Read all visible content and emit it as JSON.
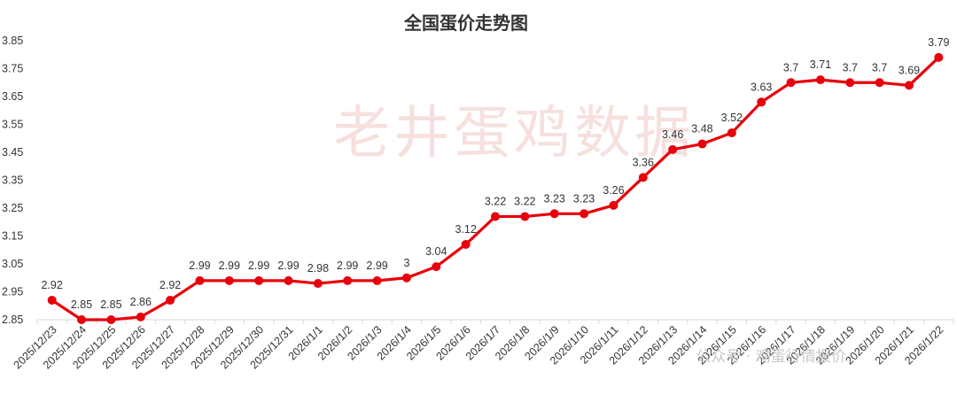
{
  "watermark": "老井蛋鸡数据",
  "footer_watermark": "公众号 · 鸡蛋行情报价",
  "colors": {
    "line": "#e8000b",
    "axis": "#d9d9d9",
    "text": "#333333"
  },
  "chart_data": {
    "type": "line",
    "title": "全国蛋价走势图",
    "ylim": [
      2.85,
      3.85
    ],
    "yticks": [
      "2.85",
      "2.95",
      "3.05",
      "3.15",
      "3.25",
      "3.35",
      "3.45",
      "3.55",
      "3.65",
      "3.75",
      "3.85"
    ],
    "categories": [
      "2025/12/23",
      "2025/12/24",
      "2025/12/25",
      "2025/12/26",
      "2025/12/27",
      "2025/12/28",
      "2025/12/29",
      "2025/12/30",
      "2025/12/31",
      "2026/1/1",
      "2026/1/2",
      "2026/1/3",
      "2026/1/4",
      "2026/1/5",
      "2026/1/6",
      "2026/1/7",
      "2026/1/8",
      "2026/1/9",
      "2026/1/10",
      "2026/1/11",
      "2026/1/12",
      "2026/1/13",
      "2026/1/14",
      "2026/1/15",
      "2026/1/16",
      "2026/1/17",
      "2026/1/18",
      "2026/1/19",
      "2026/1/20",
      "2026/1/21",
      "2026/1/22"
    ],
    "values": [
      2.92,
      2.85,
      2.85,
      2.86,
      2.92,
      2.99,
      2.99,
      2.99,
      2.99,
      2.98,
      2.99,
      2.99,
      3.0,
      3.04,
      3.12,
      3.22,
      3.22,
      3.23,
      3.23,
      3.26,
      3.36,
      3.46,
      3.48,
      3.52,
      3.63,
      3.7,
      3.71,
      3.7,
      3.7,
      3.69,
      3.79
    ],
    "labels": [
      "2.92",
      "2.85",
      "2.85",
      "2.86",
      "2.92",
      "2.99",
      "2.99",
      "2.99",
      "2.99",
      "2.98",
      "2.99",
      "2.99",
      "3",
      "3.04",
      "3.12",
      "3.22",
      "3.22",
      "3.23",
      "3.23",
      "3.26",
      "3.36",
      "3.46",
      "3.48",
      "3.52",
      "3.63",
      "3.7",
      "3.71",
      "3.7",
      "3.7",
      "3.69",
      "3.79"
    ],
    "grid": false,
    "legend": "none"
  }
}
